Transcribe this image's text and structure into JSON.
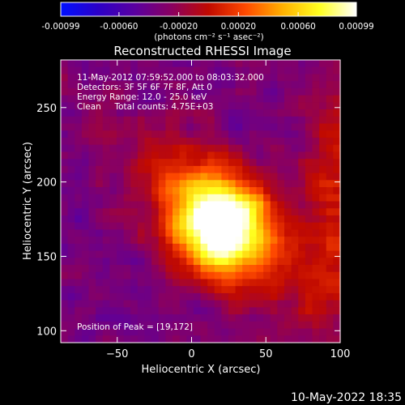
{
  "chart_data": {
    "type": "heatmap",
    "title": "Reconstructed RHESSI Image",
    "xlabel": "Heliocentric X (arcsec)",
    "ylabel": "Heliocentric Y (arcsec)",
    "xlim": [
      -88,
      100
    ],
    "ylim": [
      92,
      282
    ],
    "xticks": [
      -50,
      0,
      50,
      100
    ],
    "yticks": [
      100,
      150,
      200,
      250
    ],
    "grid": false,
    "colorbar": {
      "position": "top",
      "range": [
        -0.00099,
        0.00099
      ],
      "tick_values": [
        -0.00099,
        -0.0006,
        -0.0002,
        0.0002,
        0.0006,
        0.00099
      ],
      "tick_labels": [
        "-0.00099",
        "-0.00060",
        "-0.00020",
        "0.00020",
        "0.00060",
        "0.00099"
      ],
      "unit_label": "(photons cm⁻² s⁻¹ asec⁻²)",
      "colormap": [
        "#0010ff",
        "#2b00c8",
        "#5a00a0",
        "#8a0060",
        "#c10a00",
        "#ff4a00",
        "#ffb000",
        "#ffff20",
        "#ffffff"
      ]
    },
    "annotations": [
      "11-May-2012 07:59:52.000 to 08:03:32.000",
      "Detectors: 3F 5F 6F 7F 8F, Att 0",
      "Energy Range: 12.0 - 25.0 keV",
      "Clean     Total counts: 4.75E+03"
    ],
    "peak_label": "Position of Peak = [19,172]",
    "peak": {
      "x": 19,
      "y": 172
    },
    "sources": [
      {
        "x": 19,
        "y": 172,
        "peak": 0.00099
      }
    ]
  },
  "footer": {
    "date_stamp": "10-May-2022 18:35"
  }
}
